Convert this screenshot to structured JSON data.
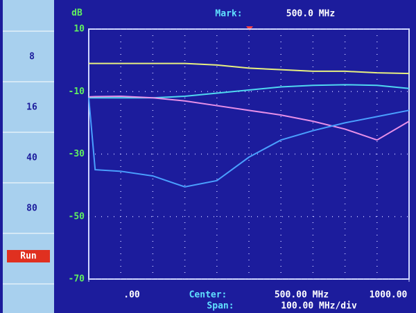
{
  "sidebar": {
    "items": [
      "8",
      "16",
      "40",
      "80",
      "Run"
    ]
  },
  "header": {
    "mark_label": "Mark:",
    "mark_value": "500.0 MHz"
  },
  "footer": {
    "center_label": "Center:",
    "center_value": "500.00 MHz",
    "span_label": "Span:",
    "span_value": "100.00 MHz/div"
  },
  "chart_data": {
    "type": "line",
    "y_label": "dB",
    "x": [
      0,
      20,
      100,
      200,
      300,
      400,
      500,
      600,
      700,
      800,
      900,
      1000
    ],
    "xlim": [
      0,
      1000
    ],
    "xticks": [
      {
        "value": 0,
        "label": ".00"
      },
      {
        "value": 1000,
        "label": "1000.00"
      }
    ],
    "ylim": [
      -70,
      10
    ],
    "yticks": [
      10,
      -10,
      -30,
      -50,
      -70
    ],
    "grid": true,
    "series": [
      {
        "color": "#e8f080",
        "values": [
          -1,
          -1,
          -1,
          -1,
          -1,
          -1.5,
          -2.5,
          -3,
          -3.5,
          -3.5,
          -4,
          -4.2
        ]
      },
      {
        "color": "#50d8f0",
        "values": [
          -12,
          -12,
          -12,
          -12,
          -11.5,
          -10.5,
          -9.5,
          -8.5,
          -8,
          -7.8,
          -8,
          -9
        ]
      },
      {
        "color": "#e890e8",
        "values": [
          -11.7,
          -11.6,
          -11.5,
          -12,
          -13,
          -14.5,
          -16,
          -17.5,
          -19.5,
          -22,
          -25.5,
          -19.5
        ]
      },
      {
        "color": "#4aa0ff",
        "values": [
          -12,
          -35,
          -35.5,
          -37,
          -40.5,
          -38.5,
          -31,
          -25.5,
          -22.5,
          -20,
          -18,
          -16
        ]
      }
    ]
  }
}
